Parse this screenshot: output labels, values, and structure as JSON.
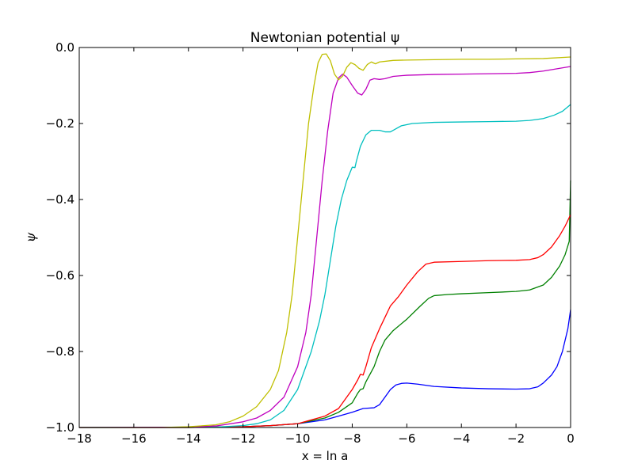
{
  "chart_data": {
    "type": "line",
    "title": "Newtonian potential ψ",
    "xlabel": "x = ln a",
    "ylabel": "ψ",
    "xlim": [
      -18,
      0
    ],
    "ylim": [
      -1.0,
      0.0
    ],
    "xticks": [
      -18,
      -16,
      -14,
      -12,
      -10,
      -8,
      -6,
      -4,
      -2,
      0
    ],
    "yticks": [
      -1.0,
      -0.8,
      -0.6,
      -0.4,
      -0.2,
      0.0
    ],
    "xtick_labels": [
      "−18",
      "−16",
      "−14",
      "−12",
      "−10",
      "−8",
      "−6",
      "−4",
      "−2",
      "0"
    ],
    "ytick_labels": [
      "−1.0",
      "−0.8",
      "−0.6",
      "−0.4",
      "−0.2",
      "0.0"
    ],
    "grid": false,
    "series": [
      {
        "color": "#0000ff",
        "points": [
          [
            -18,
            -1.0
          ],
          [
            -14,
            -1.0
          ],
          [
            -12,
            -0.998
          ],
          [
            -11,
            -0.995
          ],
          [
            -10,
            -0.99
          ],
          [
            -9,
            -0.98
          ],
          [
            -8.5,
            -0.97
          ],
          [
            -8,
            -0.96
          ],
          [
            -7.6,
            -0.95
          ],
          [
            -7.2,
            -0.948
          ],
          [
            -7,
            -0.94
          ],
          [
            -6.8,
            -0.92
          ],
          [
            -6.6,
            -0.9
          ],
          [
            -6.4,
            -0.888
          ],
          [
            -6.2,
            -0.884
          ],
          [
            -6,
            -0.883
          ],
          [
            -5.6,
            -0.886
          ],
          [
            -5,
            -0.892
          ],
          [
            -4,
            -0.896
          ],
          [
            -3,
            -0.898
          ],
          [
            -2,
            -0.899
          ],
          [
            -1.5,
            -0.898
          ],
          [
            -1.2,
            -0.893
          ],
          [
            -1,
            -0.883
          ],
          [
            -0.7,
            -0.862
          ],
          [
            -0.5,
            -0.84
          ],
          [
            -0.3,
            -0.8
          ],
          [
            -0.1,
            -0.74
          ],
          [
            0,
            -0.69
          ]
        ]
      },
      {
        "color": "#008000",
        "points": [
          [
            -18,
            -1.0
          ],
          [
            -14,
            -1.0
          ],
          [
            -12,
            -0.998
          ],
          [
            -11,
            -0.995
          ],
          [
            -10,
            -0.99
          ],
          [
            -9,
            -0.975
          ],
          [
            -8.5,
            -0.96
          ],
          [
            -8,
            -0.935
          ],
          [
            -7.8,
            -0.91
          ],
          [
            -7.7,
            -0.9
          ],
          [
            -7.6,
            -0.898
          ],
          [
            -7.5,
            -0.88
          ],
          [
            -7.2,
            -0.84
          ],
          [
            -7,
            -0.8
          ],
          [
            -6.8,
            -0.77
          ],
          [
            -6.5,
            -0.745
          ],
          [
            -6,
            -0.715
          ],
          [
            -5.5,
            -0.68
          ],
          [
            -5.2,
            -0.66
          ],
          [
            -5,
            -0.653
          ],
          [
            -4.5,
            -0.65
          ],
          [
            -4,
            -0.648
          ],
          [
            -3,
            -0.645
          ],
          [
            -2,
            -0.642
          ],
          [
            -1.5,
            -0.638
          ],
          [
            -1,
            -0.625
          ],
          [
            -0.7,
            -0.605
          ],
          [
            -0.4,
            -0.575
          ],
          [
            -0.2,
            -0.545
          ],
          [
            -0.05,
            -0.51
          ],
          [
            0,
            -0.35
          ]
        ]
      },
      {
        "color": "#ff0000",
        "points": [
          [
            -18,
            -1.0
          ],
          [
            -14,
            -1.0
          ],
          [
            -12,
            -0.998
          ],
          [
            -11,
            -0.995
          ],
          [
            -10,
            -0.99
          ],
          [
            -9,
            -0.97
          ],
          [
            -8.5,
            -0.95
          ],
          [
            -8,
            -0.9
          ],
          [
            -7.8,
            -0.875
          ],
          [
            -7.7,
            -0.86
          ],
          [
            -7.6,
            -0.862
          ],
          [
            -7.5,
            -0.84
          ],
          [
            -7.3,
            -0.79
          ],
          [
            -7,
            -0.74
          ],
          [
            -6.8,
            -0.71
          ],
          [
            -6.6,
            -0.68
          ],
          [
            -6.3,
            -0.655
          ],
          [
            -6,
            -0.625
          ],
          [
            -5.6,
            -0.59
          ],
          [
            -5.3,
            -0.57
          ],
          [
            -5,
            -0.565
          ],
          [
            -4,
            -0.563
          ],
          [
            -3,
            -0.561
          ],
          [
            -2,
            -0.56
          ],
          [
            -1.5,
            -0.558
          ],
          [
            -1.2,
            -0.553
          ],
          [
            -1,
            -0.545
          ],
          [
            -0.7,
            -0.525
          ],
          [
            -0.4,
            -0.495
          ],
          [
            -0.2,
            -0.47
          ],
          [
            0,
            -0.44
          ]
        ]
      },
      {
        "color": "#00bfbf",
        "points": [
          [
            -18,
            -1.0
          ],
          [
            -13,
            -0.999
          ],
          [
            -12,
            -0.995
          ],
          [
            -11.5,
            -0.99
          ],
          [
            -11,
            -0.98
          ],
          [
            -10.5,
            -0.955
          ],
          [
            -10,
            -0.9
          ],
          [
            -9.5,
            -0.8
          ],
          [
            -9.2,
            -0.72
          ],
          [
            -9,
            -0.65
          ],
          [
            -8.8,
            -0.56
          ],
          [
            -8.6,
            -0.47
          ],
          [
            -8.4,
            -0.4
          ],
          [
            -8.2,
            -0.35
          ],
          [
            -8,
            -0.315
          ],
          [
            -7.9,
            -0.316
          ],
          [
            -7.85,
            -0.3
          ],
          [
            -7.7,
            -0.26
          ],
          [
            -7.5,
            -0.23
          ],
          [
            -7.3,
            -0.218
          ],
          [
            -7,
            -0.218
          ],
          [
            -6.8,
            -0.222
          ],
          [
            -6.6,
            -0.222
          ],
          [
            -6.4,
            -0.214
          ],
          [
            -6.2,
            -0.206
          ],
          [
            -5.8,
            -0.2
          ],
          [
            -5,
            -0.197
          ],
          [
            -4,
            -0.196
          ],
          [
            -3,
            -0.195
          ],
          [
            -2,
            -0.194
          ],
          [
            -1.5,
            -0.192
          ],
          [
            -1,
            -0.187
          ],
          [
            -0.6,
            -0.178
          ],
          [
            -0.3,
            -0.168
          ],
          [
            0,
            -0.15
          ]
        ]
      },
      {
        "color": "#bf00bf",
        "points": [
          [
            -18,
            -1.0
          ],
          [
            -14,
            -0.999
          ],
          [
            -13,
            -0.996
          ],
          [
            -12,
            -0.985
          ],
          [
            -11.5,
            -0.975
          ],
          [
            -11,
            -0.955
          ],
          [
            -10.5,
            -0.92
          ],
          [
            -10,
            -0.84
          ],
          [
            -9.7,
            -0.75
          ],
          [
            -9.5,
            -0.65
          ],
          [
            -9.3,
            -0.5
          ],
          [
            -9.1,
            -0.35
          ],
          [
            -8.9,
            -0.22
          ],
          [
            -8.7,
            -0.12
          ],
          [
            -8.5,
            -0.08
          ],
          [
            -8.35,
            -0.07
          ],
          [
            -8.2,
            -0.078
          ],
          [
            -8,
            -0.1
          ],
          [
            -7.8,
            -0.12
          ],
          [
            -7.65,
            -0.125
          ],
          [
            -7.5,
            -0.11
          ],
          [
            -7.35,
            -0.086
          ],
          [
            -7.2,
            -0.082
          ],
          [
            -7,
            -0.084
          ],
          [
            -6.8,
            -0.082
          ],
          [
            -6.5,
            -0.076
          ],
          [
            -6,
            -0.073
          ],
          [
            -5,
            -0.071
          ],
          [
            -4,
            -0.07
          ],
          [
            -3,
            -0.069
          ],
          [
            -2,
            -0.068
          ],
          [
            -1.5,
            -0.066
          ],
          [
            -1,
            -0.062
          ],
          [
            -0.5,
            -0.056
          ],
          [
            0,
            -0.05
          ]
        ]
      },
      {
        "color": "#bfbf00",
        "points": [
          [
            -18,
            -1.0
          ],
          [
            -15,
            -1.0
          ],
          [
            -14,
            -0.998
          ],
          [
            -13,
            -0.993
          ],
          [
            -12.5,
            -0.985
          ],
          [
            -12,
            -0.97
          ],
          [
            -11.5,
            -0.945
          ],
          [
            -11,
            -0.9
          ],
          [
            -10.7,
            -0.85
          ],
          [
            -10.4,
            -0.75
          ],
          [
            -10.2,
            -0.65
          ],
          [
            -10,
            -0.5
          ],
          [
            -9.8,
            -0.35
          ],
          [
            -9.6,
            -0.2
          ],
          [
            -9.4,
            -0.1
          ],
          [
            -9.25,
            -0.04
          ],
          [
            -9.1,
            -0.018
          ],
          [
            -8.95,
            -0.017
          ],
          [
            -8.8,
            -0.035
          ],
          [
            -8.65,
            -0.07
          ],
          [
            -8.5,
            -0.085
          ],
          [
            -8.35,
            -0.075
          ],
          [
            -8.2,
            -0.052
          ],
          [
            -8.05,
            -0.04
          ],
          [
            -7.9,
            -0.045
          ],
          [
            -7.75,
            -0.055
          ],
          [
            -7.6,
            -0.06
          ],
          [
            -7.45,
            -0.045
          ],
          [
            -7.3,
            -0.038
          ],
          [
            -7.15,
            -0.043
          ],
          [
            -7,
            -0.038
          ],
          [
            -6.5,
            -0.034
          ],
          [
            -6,
            -0.033
          ],
          [
            -5,
            -0.032
          ],
          [
            -4,
            -0.031
          ],
          [
            -3,
            -0.031
          ],
          [
            -2,
            -0.03
          ],
          [
            -1,
            -0.029
          ],
          [
            0,
            -0.025
          ]
        ]
      }
    ]
  }
}
